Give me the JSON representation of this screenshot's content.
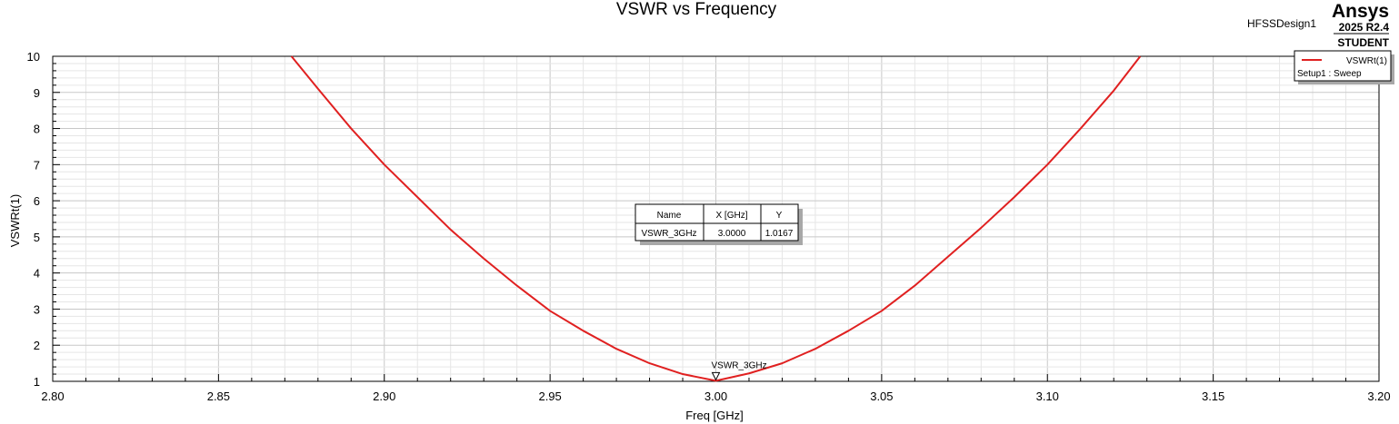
{
  "header": {
    "project": "HFSSDesign1",
    "brand": "Ansys",
    "version": "2025 R2.4",
    "edition": "STUDENT"
  },
  "colors": {
    "trace": "#e02020",
    "grid_major": "#c8c8c8",
    "grid_minor": "#e6e6e6"
  },
  "legend": {
    "trace_label": "VSWRt(1)",
    "setup_label": "Setup1 : Sweep",
    "placement": "top-right"
  },
  "marker": {
    "name": "VSWR_3GHz",
    "x": 3.0,
    "y": 1.0167
  },
  "marker_table": {
    "headers": [
      "Name",
      "X [GHz]",
      "Y"
    ],
    "row": [
      "VSWR_3GHz",
      "3.0000",
      "1.0167"
    ]
  },
  "chart_data": {
    "type": "line",
    "title": "VSWR vs Frequency",
    "xlabel": "Freq [GHz]",
    "ylabel": "VSWRt(1)",
    "xlim": [
      2.8,
      3.2
    ],
    "ylim": [
      1,
      10
    ],
    "grid": true,
    "x_ticks": [
      "2.80",
      "2.85",
      "2.90",
      "2.95",
      "3.00",
      "3.05",
      "3.10",
      "3.15",
      "3.20"
    ],
    "y_ticks": [
      "1",
      "2",
      "3",
      "4",
      "5",
      "6",
      "7",
      "8",
      "9",
      "10"
    ],
    "series": [
      {
        "name": "VSWRt(1)",
        "x": [
          2.872,
          2.88,
          2.89,
          2.9,
          2.91,
          2.92,
          2.93,
          2.94,
          2.95,
          2.96,
          2.97,
          2.98,
          2.99,
          3.0,
          3.01,
          3.02,
          3.03,
          3.04,
          3.05,
          3.06,
          3.07,
          3.08,
          3.09,
          3.1,
          3.11,
          3.12,
          3.128
        ],
        "y": [
          10.0,
          9.1,
          8.0,
          7.0,
          6.1,
          5.2,
          4.4,
          3.65,
          2.95,
          2.4,
          1.9,
          1.5,
          1.2,
          1.0167,
          1.22,
          1.5,
          1.9,
          2.4,
          2.95,
          3.65,
          4.45,
          5.25,
          6.1,
          7.0,
          8.0,
          9.05,
          10.0
        ]
      }
    ]
  }
}
